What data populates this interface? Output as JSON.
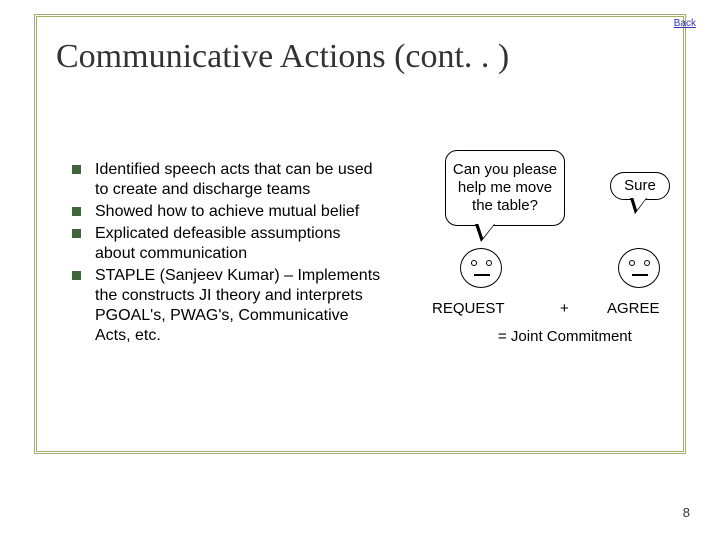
{
  "back_link": "Back",
  "title": "Communicative Actions (cont. . )",
  "bullets": [
    "Identified speech acts that can be used to create and discharge teams",
    "Showed how to achieve mutual belief",
    "Explicated defeasible assumptions about communication",
    "STAPLE (Sanjeev Kumar) – Implements the constructs JI theory and interprets PGOAL's, PWAG's, Communicative Acts, etc."
  ],
  "diagram": {
    "bubble1_text": "Can you please help me move the table?",
    "bubble2_text": "Sure",
    "label_request": "REQUEST",
    "label_plus": "+",
    "label_agree": "AGREE",
    "label_joint": "= Joint Commitment"
  },
  "page_number": "8",
  "colors": {
    "border": "#9fae6a",
    "bullet_marker": "#3e6639",
    "link": "#3333cc",
    "title": "#333333"
  }
}
